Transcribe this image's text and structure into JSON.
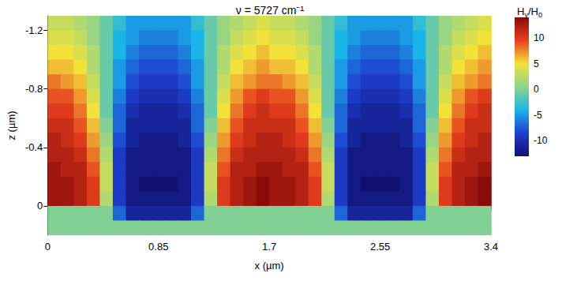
{
  "chart_data": {
    "type": "heatmap",
    "title": "ν = 5727 cm⁻¹",
    "colorbar_title": "Hy/H0",
    "x_label": "x (µm)",
    "y_label": "z (µm)",
    "xlim": [
      0,
      3.4
    ],
    "xticks": [
      0,
      0.85,
      1.7,
      2.55,
      3.4
    ],
    "ylim": [
      -1.3,
      0.2
    ],
    "yticks": [
      -1.2,
      -0.8,
      -0.4,
      0
    ],
    "x": [
      0.05,
      0.15,
      0.25,
      0.35,
      0.45,
      0.55,
      0.65,
      0.75,
      0.85,
      0.95,
      1.05,
      1.15,
      1.25,
      1.35,
      1.45,
      1.55,
      1.65,
      1.75,
      1.85,
      1.95,
      2.05,
      2.15,
      2.25,
      2.35,
      2.45,
      2.55,
      2.65,
      2.75,
      2.85,
      2.95,
      3.05,
      3.15,
      3.25,
      3.35
    ],
    "y": [
      -1.25,
      -1.15,
      -1.05,
      -0.95,
      -0.85,
      -0.75,
      -0.65,
      -0.55,
      -0.45,
      -0.35,
      -0.25,
      -0.15,
      -0.05,
      0.05,
      0.15
    ],
    "cells": [
      [
        3,
        3,
        2,
        1,
        -1,
        -3,
        -5,
        -5,
        -5,
        -5,
        -5,
        -3,
        -1,
        1,
        2,
        3,
        4,
        3,
        3,
        2,
        1,
        -1,
        -3,
        -5,
        -5,
        -5,
        -5,
        -5,
        -3,
        -1,
        1,
        2,
        3,
        4
      ],
      [
        4,
        4,
        3,
        1,
        -1,
        -4,
        -5,
        -6,
        -6,
        -6,
        -5,
        -4,
        -1,
        1,
        3,
        4,
        5,
        4,
        4,
        3,
        1,
        -1,
        -4,
        -5,
        -6,
        -6,
        -6,
        -5,
        -4,
        -1,
        1,
        3,
        4,
        5
      ],
      [
        5,
        5,
        4,
        2,
        -1,
        -4,
        -6,
        -7,
        -7,
        -7,
        -6,
        -4,
        -1,
        2,
        4,
        5,
        6,
        5,
        5,
        4,
        2,
        -1,
        -4,
        -6,
        -7,
        -7,
        -7,
        -6,
        -4,
        -1,
        2,
        4,
        5,
        6
      ],
      [
        6,
        6,
        5,
        2,
        -1,
        -5,
        -7,
        -8,
        -8,
        -8,
        -7,
        -5,
        -1,
        2,
        5,
        6,
        7,
        6,
        6,
        5,
        2,
        -1,
        -5,
        -7,
        -8,
        -8,
        -8,
        -7,
        -5,
        -1,
        2,
        5,
        6,
        7
      ],
      [
        8,
        7,
        6,
        3,
        -1,
        -5,
        -8,
        -9,
        -9,
        -9,
        -8,
        -5,
        -1,
        3,
        6,
        7,
        8,
        8,
        7,
        6,
        3,
        -1,
        -5,
        -8,
        -9,
        -9,
        -9,
        -8,
        -5,
        -1,
        3,
        6,
        7,
        8
      ],
      [
        9,
        9,
        7,
        4,
        -1,
        -6,
        -9,
        -10,
        -10,
        -10,
        -9,
        -6,
        -1,
        4,
        7,
        9,
        10,
        9,
        9,
        7,
        4,
        -1,
        -6,
        -9,
        -10,
        -10,
        -10,
        -9,
        -6,
        -1,
        4,
        7,
        9,
        10
      ],
      [
        10,
        10,
        8,
        5,
        -1,
        -7,
        -10,
        -11,
        -11,
        -11,
        -10,
        -7,
        -1,
        5,
        8,
        10,
        11,
        10,
        10,
        8,
        5,
        -1,
        -7,
        -10,
        -11,
        -11,
        -11,
        -10,
        -7,
        -1,
        5,
        8,
        10,
        11
      ],
      [
        11,
        11,
        9,
        6,
        0,
        -7,
        -11,
        -11,
        -11,
        -11,
        -11,
        -7,
        0,
        6,
        9,
        11,
        11,
        11,
        11,
        9,
        6,
        0,
        -7,
        -11,
        -11,
        -11,
        -11,
        -11,
        -7,
        0,
        6,
        9,
        11,
        11
      ],
      [
        12,
        11,
        10,
        7,
        1,
        -8,
        -11,
        -12,
        -12,
        -12,
        -11,
        -8,
        1,
        7,
        10,
        11,
        12,
        12,
        11,
        10,
        7,
        1,
        -8,
        -11,
        -12,
        -12,
        -12,
        -11,
        -8,
        1,
        7,
        10,
        11,
        12
      ],
      [
        12,
        12,
        11,
        8,
        2,
        -9,
        -12,
        -12,
        -12,
        -12,
        -12,
        -9,
        2,
        8,
        11,
        12,
        12,
        12,
        12,
        11,
        8,
        2,
        -9,
        -12,
        -12,
        -12,
        -12,
        -12,
        -9,
        2,
        8,
        11,
        12,
        12
      ],
      [
        13,
        12,
        12,
        9,
        3,
        -9,
        -12,
        -12,
        -12,
        -12,
        -12,
        -9,
        3,
        9,
        12,
        12,
        13,
        13,
        12,
        12,
        9,
        3,
        -9,
        -12,
        -12,
        -12,
        -12,
        -12,
        -9,
        3,
        9,
        12,
        12,
        13
      ],
      [
        13,
        13,
        12,
        10,
        3,
        -9,
        -12,
        -13,
        -13,
        -13,
        -12,
        -9,
        3,
        10,
        12,
        13,
        14,
        13,
        13,
        12,
        10,
        3,
        -9,
        -12,
        -13,
        -13,
        -13,
        -12,
        -9,
        3,
        10,
        12,
        13,
        14
      ],
      [
        13,
        13,
        12,
        10,
        2,
        -9,
        -12,
        -12,
        -12,
        -12,
        -12,
        -9,
        2,
        10,
        12,
        13,
        14,
        13,
        13,
        12,
        10,
        2,
        -9,
        -12,
        -12,
        -12,
        -12,
        -12,
        -9,
        2,
        10,
        12,
        13,
        14
      ],
      [
        0,
        0,
        0,
        0,
        0,
        -7,
        -11,
        -11,
        -11,
        -11,
        -11,
        -7,
        0,
        0,
        0,
        0,
        0,
        0,
        0,
        0,
        0,
        0,
        -7,
        -11,
        -11,
        -11,
        -11,
        -11,
        -7,
        0,
        0,
        0,
        0,
        0
      ],
      [
        0,
        0,
        0,
        0,
        0,
        0,
        0,
        0,
        0,
        0,
        0,
        0,
        0,
        0,
        0,
        0,
        0,
        0,
        0,
        0,
        0,
        0,
        0,
        0,
        0,
        0,
        0,
        0,
        0,
        0,
        0,
        0,
        0,
        0
      ]
    ],
    "colorbar": {
      "range": [
        -13,
        14
      ],
      "ticks": [
        -10,
        -5,
        0,
        5,
        10
      ]
    }
  }
}
